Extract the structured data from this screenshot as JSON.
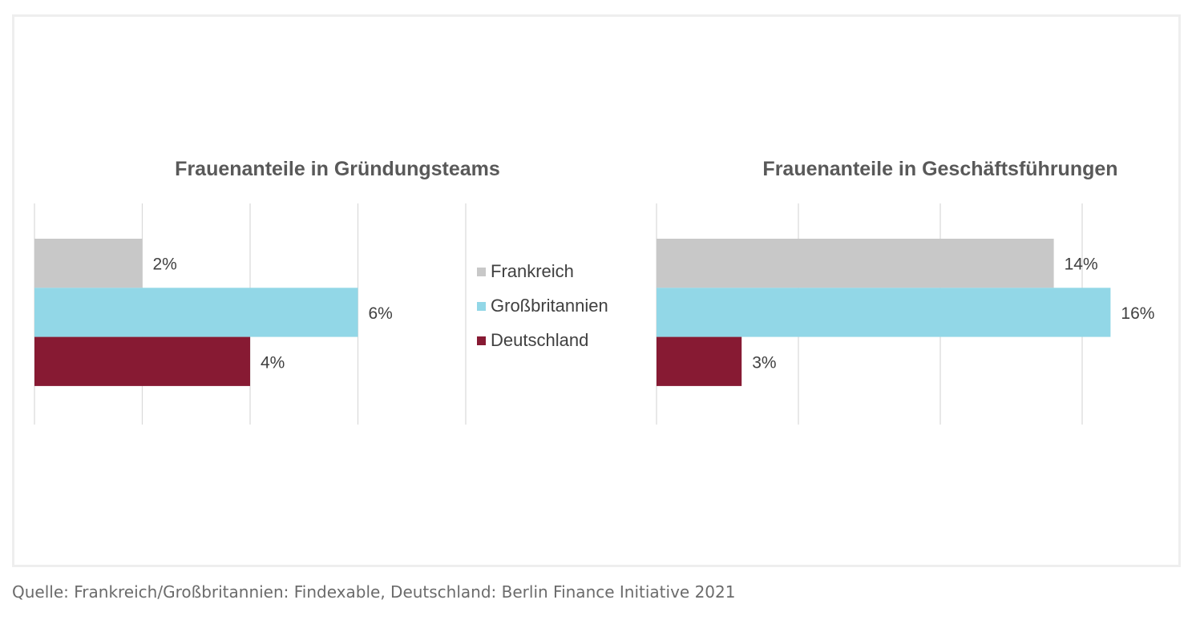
{
  "chart_data": [
    {
      "type": "bar",
      "orientation": "horizontal",
      "title": "Frauenanteile in Gründungsteams",
      "categories": [
        "Frankreich",
        "Großbritannien",
        "Deutschland"
      ],
      "values": [
        2,
        6,
        4
      ],
      "value_labels": [
        "2%",
        "6%",
        "4%"
      ],
      "colors": [
        "#c8c8c8",
        "#92d7e7",
        "#871a33"
      ],
      "xlim": [
        0,
        8
      ],
      "grid": true,
      "legend": "none"
    },
    {
      "type": "bar",
      "orientation": "horizontal",
      "title": "Frauenanteile in Geschäftsführungen",
      "categories": [
        "Frankreich",
        "Großbritannien",
        "Deutschland"
      ],
      "values": [
        14,
        16,
        3
      ],
      "value_labels": [
        "14%",
        "16%",
        "3%"
      ],
      "colors": [
        "#c8c8c8",
        "#92d7e7",
        "#871a33"
      ],
      "xlim": [
        0,
        16
      ],
      "grid": true,
      "legend": "none"
    }
  ],
  "legend": {
    "placement": "center",
    "items": [
      {
        "label": "Frankreich",
        "color": "#c8c8c8"
      },
      {
        "label": "Großbritannien",
        "color": "#92d7e7"
      },
      {
        "label": "Deutschland",
        "color": "#871a33"
      }
    ]
  },
  "source": "Quelle: Frankreich/Großbritannien: Findexable, Deutschland: Berlin Finance Initiative 2021"
}
